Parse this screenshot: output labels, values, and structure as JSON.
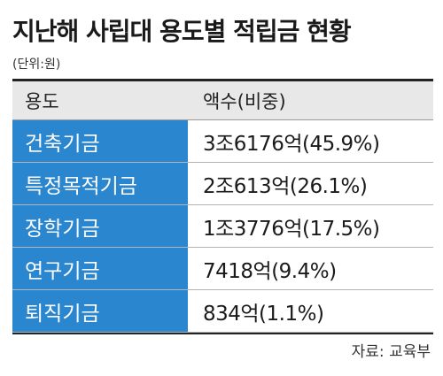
{
  "title": "지난해 사립대 용도별 적립금 현황",
  "unit": "(단위:원)",
  "source": "자료: 교육부",
  "chart_data": {
    "type": "table",
    "title": "지난해 사립대 용도별 적립금 현황",
    "headers": [
      "용도",
      "액수(비중)"
    ],
    "rows": [
      {
        "category": "건축기금",
        "amount": "3조6176억(45.9%)",
        "amount_eok": 36176,
        "share_pct": 45.9
      },
      {
        "category": "특정목적기금",
        "amount": "2조613억(26.1%)",
        "amount_eok": 20613,
        "share_pct": 26.1
      },
      {
        "category": "장학기금",
        "amount": "1조3776억(17.5%)",
        "amount_eok": 13776,
        "share_pct": 17.5
      },
      {
        "category": "연구기금",
        "amount": "7418억(9.4%)",
        "amount_eok": 7418,
        "share_pct": 9.4
      },
      {
        "category": "퇴직기금",
        "amount": "834억(1.1%)",
        "amount_eok": 834,
        "share_pct": 1.1
      }
    ]
  },
  "colors": {
    "category_cell": "#2a86cf",
    "header_bg": "#e8e8e8"
  }
}
